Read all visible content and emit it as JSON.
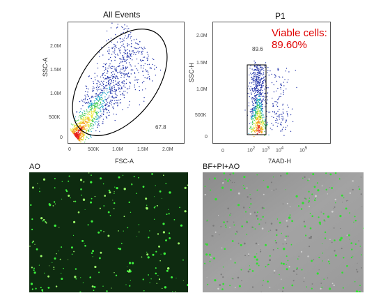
{
  "plot_all_events": {
    "title": "All Events",
    "xlabel": "FSC-A",
    "ylabel": "SSC-A",
    "xticks": [
      "0",
      "500K",
      "1.0M",
      "1.5M",
      "2.0M"
    ],
    "yticks": [
      "0",
      "500K",
      "1.0M",
      "1.5M",
      "2.0M"
    ],
    "gate_percent": "67.8"
  },
  "plot_p1": {
    "title": "P1",
    "xlabel": "7AAD-H",
    "ylabel": "SSC-H",
    "xticks": [
      "0",
      "10",
      "2",
      "10",
      "3",
      "10",
      "4",
      "10",
      "5"
    ],
    "yticks": [
      "0",
      "500K",
      "1.0M",
      "1.5M",
      "2.0M"
    ],
    "gate_percent": "89.6",
    "viable_label": "Viable cells:",
    "viable_value": "89.60%"
  },
  "micrographs": {
    "ao_label": "AO",
    "merge_label": "BF+PI+AO"
  },
  "colors": {
    "fluorescence_green": "#2bd62b",
    "brightfield_gray": "#9a9a9a",
    "annotation_red": "#e00000"
  }
}
